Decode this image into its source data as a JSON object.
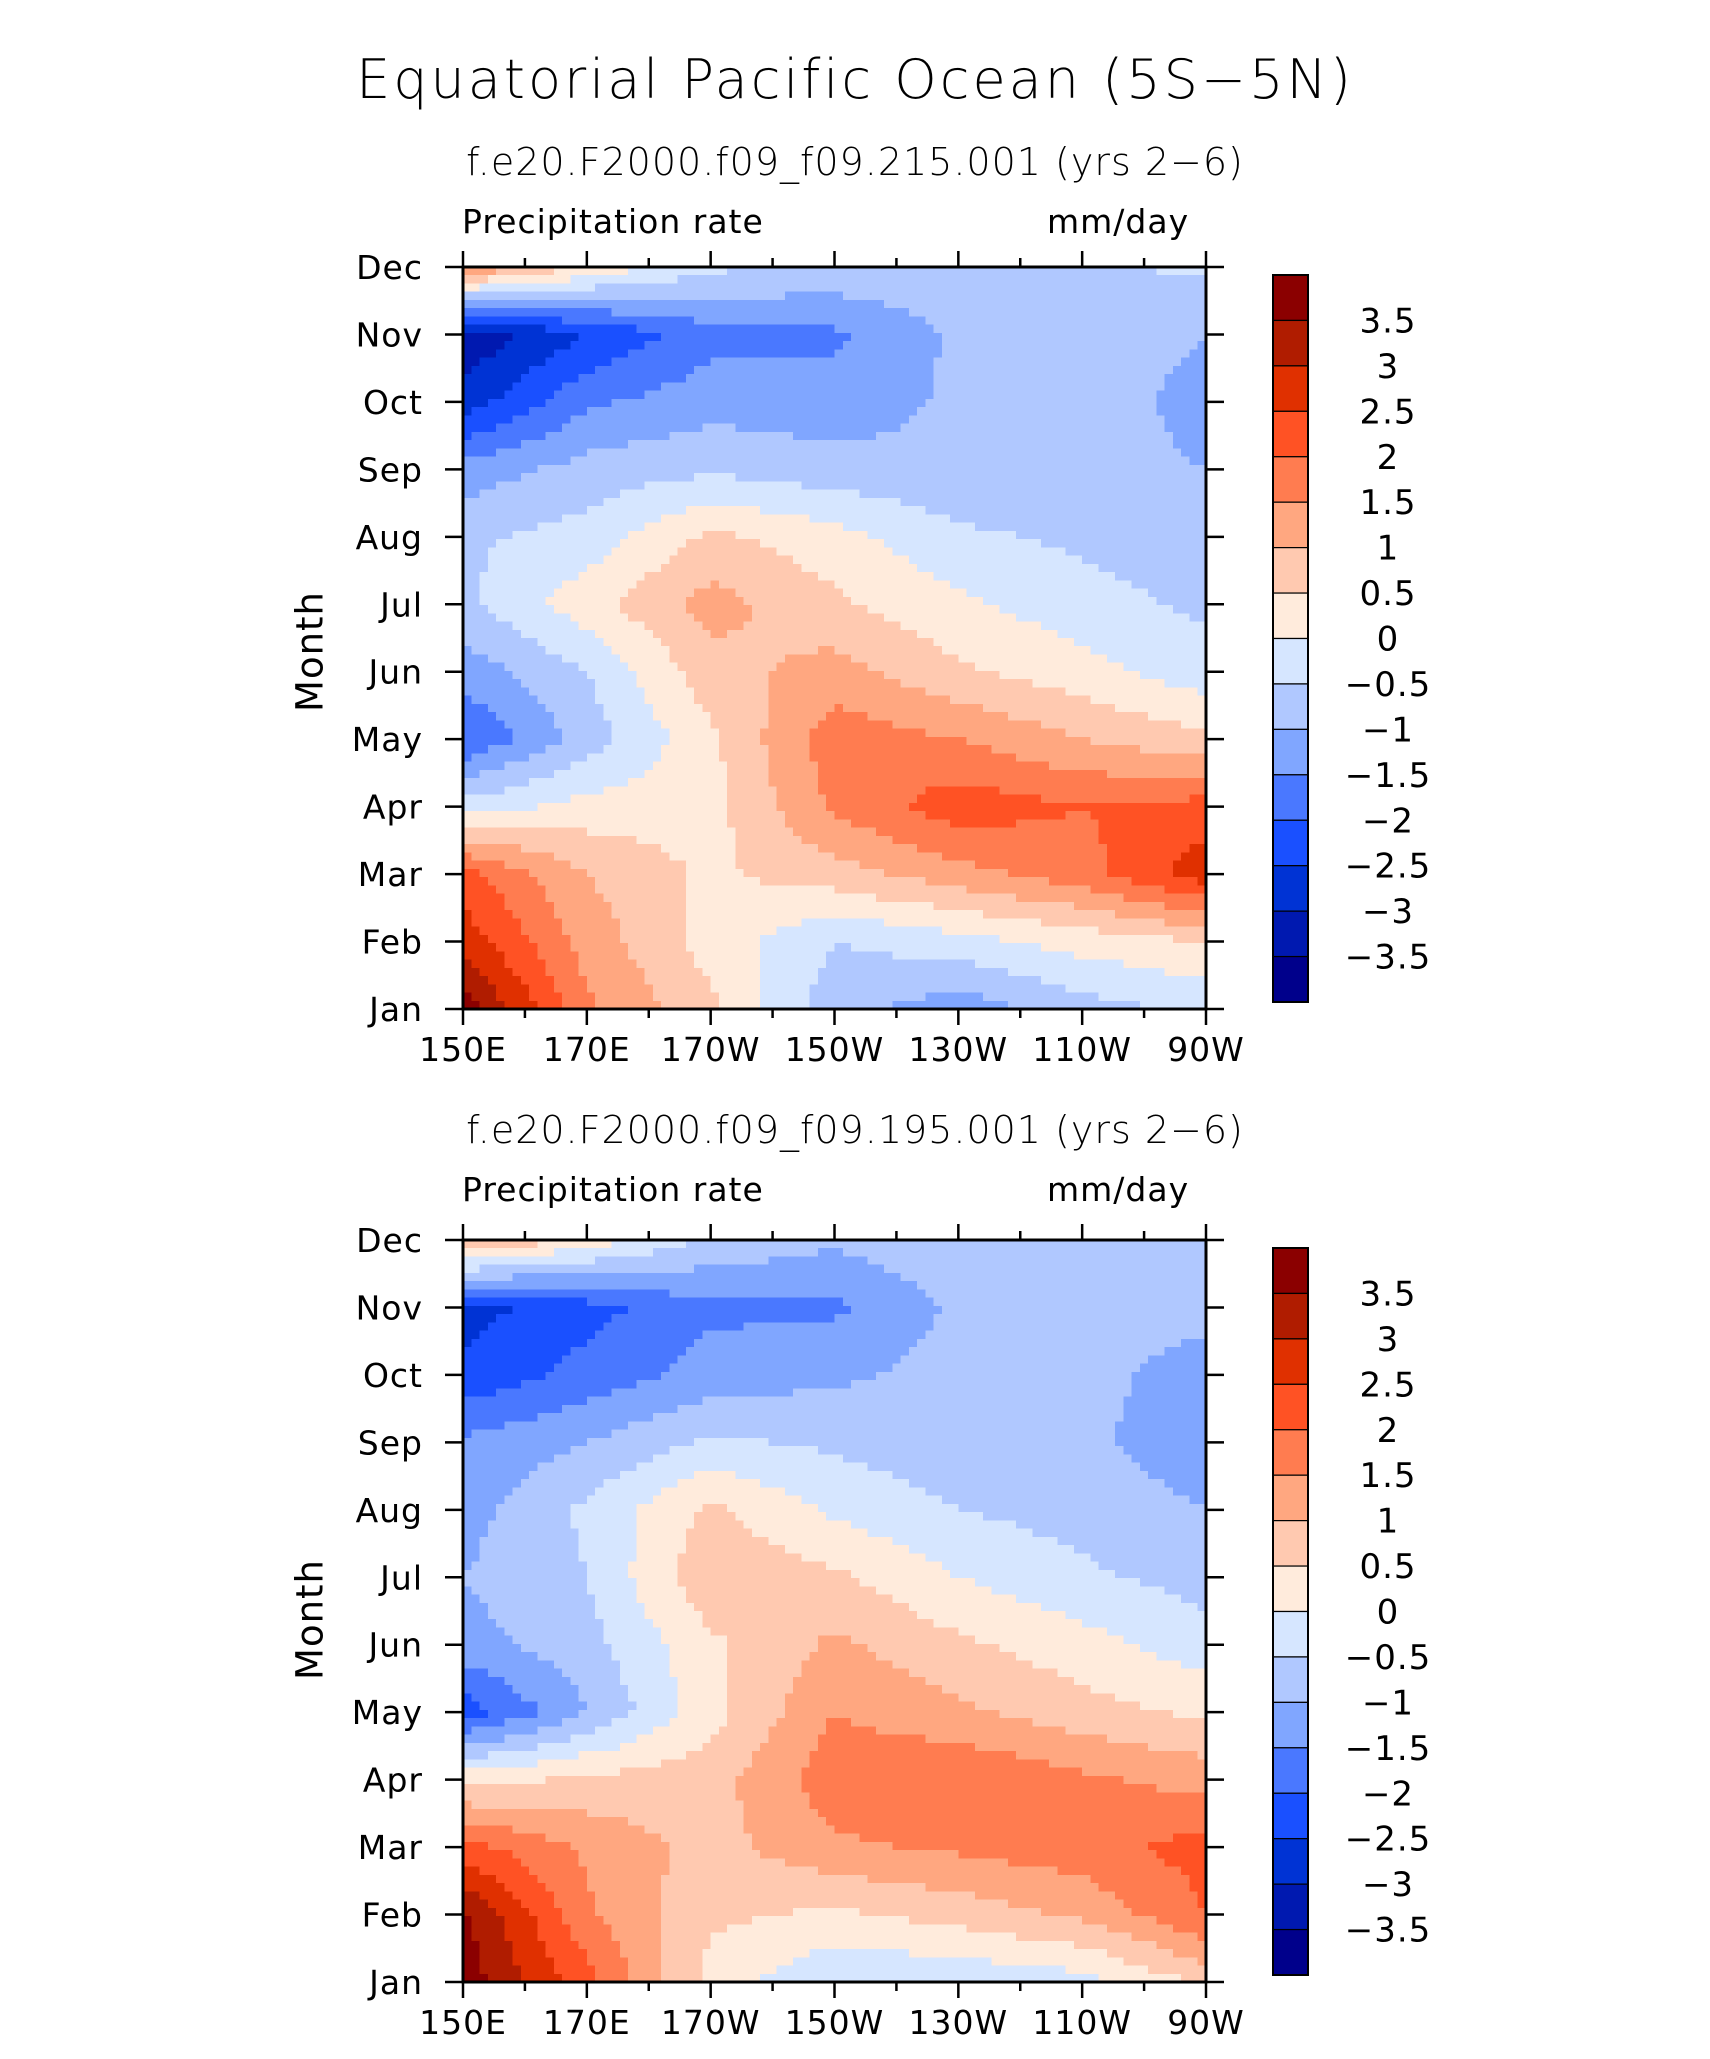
{
  "title": "Equatorial Pacific Ocean (5S−5N)",
  "chart_data": [
    {
      "type": "heatmap",
      "title": "f.e20.F2000.f09_f09.215.001 (yrs 2−6)",
      "variable_label": "Precipitation rate",
      "units_label": "mm/day",
      "ylabel": "Month",
      "xlabel": "",
      "x_ticks": [
        "150E",
        "170E",
        "170W",
        "150W",
        "130W",
        "110W",
        "90W"
      ],
      "x": [
        150,
        170,
        190,
        210,
        230,
        250,
        270
      ],
      "y_ticks": [
        "Jan",
        "Feb",
        "Mar",
        "Apr",
        "May",
        "Jun",
        "Jul",
        "Aug",
        "Sep",
        "Oct",
        "Nov",
        "Dec"
      ],
      "z": [
        [
          3.8,
          1.6,
          0.6,
          -0.8,
          -1.3,
          -0.7,
          -0.4
        ],
        [
          2.8,
          1.3,
          0.3,
          -0.5,
          -0.2,
          0.2,
          0.5
        ],
        [
          2.2,
          1.0,
          0.4,
          0.8,
          1.3,
          1.8,
          2.8
        ],
        [
          -0.3,
          0.2,
          0.3,
          1.6,
          2.3,
          2.0,
          2.2
        ],
        [
          -2.0,
          -0.8,
          0.4,
          1.8,
          1.5,
          1.0,
          0.6
        ],
        [
          -1.3,
          -0.5,
          0.8,
          1.2,
          0.6,
          0.2,
          -0.3
        ],
        [
          -0.6,
          0.3,
          1.2,
          0.6,
          0.1,
          -0.3,
          -0.6
        ],
        [
          -0.6,
          -0.3,
          0.6,
          0.2,
          -0.4,
          -0.6,
          -0.8
        ],
        [
          -1.3,
          -0.8,
          -0.6,
          -0.8,
          -0.9,
          -0.8,
          -1.0
        ],
        [
          -2.8,
          -1.6,
          -1.2,
          -1.3,
          -0.9,
          -0.7,
          -1.2
        ],
        [
          -3.4,
          -2.5,
          -1.7,
          -1.6,
          -0.9,
          -0.7,
          -1.0
        ],
        [
          1.6,
          0.4,
          -0.4,
          -0.6,
          -0.6,
          -0.6,
          -0.4
        ]
      ],
      "contour_levels": [
        -3.5,
        -3,
        -2.5,
        -2,
        -1.5,
        -1,
        -0.5,
        0,
        0.5,
        1,
        1.5,
        2,
        2.5,
        3,
        3.5
      ],
      "colorbar_labels": [
        "3.5",
        "3",
        "2.5",
        "2",
        "1.5",
        "1",
        "0.5",
        "0",
        "−0.5",
        "−1",
        "−1.5",
        "−2",
        "−2.5",
        "−3",
        "−3.5"
      ]
    },
    {
      "type": "heatmap",
      "title": "f.e20.F2000.f09_f09.195.001 (yrs 2−6)",
      "variable_label": "Precipitation rate",
      "units_label": "mm/day",
      "ylabel": "Month",
      "xlabel": "",
      "x_ticks": [
        "150E",
        "170E",
        "170W",
        "150W",
        "130W",
        "110W",
        "90W"
      ],
      "x": [
        150,
        170,
        190,
        210,
        230,
        250,
        270
      ],
      "y_ticks": [
        "Jan",
        "Feb",
        "Mar",
        "Apr",
        "May",
        "Jun",
        "Jul",
        "Aug",
        "Sep",
        "Oct",
        "Nov",
        "Dec"
      ],
      "z": [
        [
          3.8,
          2.2,
          0.3,
          -0.5,
          -0.4,
          -0.2,
          0.6
        ],
        [
          3.6,
          1.6,
          0.6,
          0.4,
          0.7,
          1.1,
          2.0
        ],
        [
          2.2,
          1.4,
          0.8,
          1.4,
          1.6,
          1.8,
          2.2
        ],
        [
          0.3,
          0.6,
          0.8,
          1.8,
          2.0,
          1.6,
          1.3
        ],
        [
          -2.3,
          -1.0,
          0.3,
          1.5,
          1.1,
          0.7,
          0.4
        ],
        [
          -1.2,
          -0.7,
          0.4,
          1.1,
          0.6,
          0.2,
          -0.3
        ],
        [
          -1.0,
          -0.5,
          0.9,
          0.6,
          0.0,
          -0.4,
          -0.7
        ],
        [
          -1.2,
          -0.4,
          0.6,
          -0.1,
          -0.5,
          -0.7,
          -1.0
        ],
        [
          -1.4,
          -1.0,
          -0.4,
          -0.6,
          -0.8,
          -0.9,
          -1.3
        ],
        [
          -2.4,
          -1.8,
          -1.3,
          -1.1,
          -0.8,
          -0.8,
          -1.3
        ],
        [
          -2.7,
          -2.2,
          -1.6,
          -1.6,
          -0.9,
          -0.7,
          -0.8
        ],
        [
          1.2,
          0.3,
          -0.6,
          -0.9,
          -0.6,
          -0.6,
          -0.5
        ]
      ],
      "contour_levels": [
        -3.5,
        -3,
        -2.5,
        -2,
        -1.5,
        -1,
        -0.5,
        0,
        0.5,
        1,
        1.5,
        2,
        2.5,
        3,
        3.5
      ],
      "colorbar_labels": [
        "3.5",
        "3",
        "2.5",
        "2",
        "1.5",
        "1",
        "0.5",
        "0",
        "−0.5",
        "−1",
        "−1.5",
        "−2",
        "−2.5",
        "−3",
        "−3.5"
      ]
    }
  ],
  "colors": {
    "palette_low_to_high": [
      "#00008b",
      "#0019b0",
      "#0033d4",
      "#1a50ff",
      "#4a78ff",
      "#80a6ff",
      "#b0c8ff",
      "#d6e6ff",
      "#ffebdc",
      "#ffc9b0",
      "#ffa780",
      "#ff7c50",
      "#ff5224",
      "#e03000",
      "#b01c00",
      "#8b0000"
    ]
  }
}
